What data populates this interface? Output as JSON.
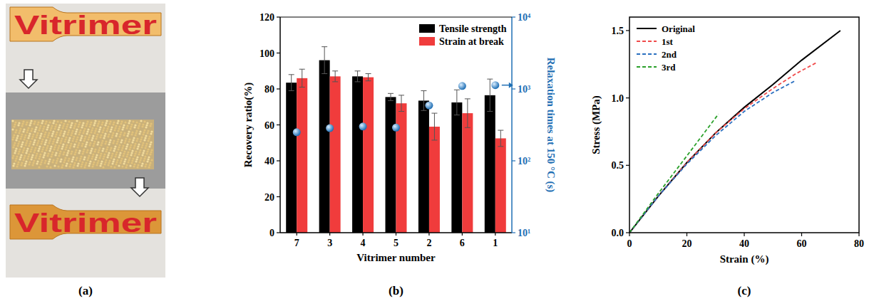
{
  "photo": {
    "caption": "(a)",
    "labels": [
      "Vitrimer",
      "Vitrimer"
    ]
  },
  "chart_data": [
    {
      "type": "bar",
      "caption": "(b)",
      "x_label": "Vitrimer number",
      "y_label": "Recovery ratio(%)",
      "y2_label": "Relaxation times at 150 °C (s)",
      "categories": [
        "7",
        "3",
        "4",
        "5",
        "2",
        "6",
        "1"
      ],
      "series": [
        {
          "name": "Tensile strength",
          "color": "#000000",
          "values": [
            83.5,
            96,
            87,
            75.5,
            73.5,
            72.5,
            76.5
          ],
          "errors": [
            4.5,
            7.5,
            3,
            2,
            5.5,
            7,
            9
          ]
        },
        {
          "name": "Strain at break",
          "color": "#f03c3c",
          "values": [
            86,
            87,
            86.5,
            72,
            59,
            66.5,
            52.5
          ],
          "errors": [
            5,
            3,
            2,
            4.5,
            7.5,
            8,
            4.5
          ]
        },
        {
          "type": "scatter",
          "axis": "y2",
          "color": "#1f6fb4",
          "marker": "sphere",
          "values": [
            250,
            285,
            300,
            290,
            590,
            1100,
            1130
          ]
        }
      ],
      "ylim": [
        0,
        120
      ],
      "yticks": [
        0,
        20,
        40,
        60,
        80,
        100,
        120
      ],
      "y2lim": [
        10,
        10000
      ],
      "y2ticks": [
        {
          "value": 10,
          "label": "10¹"
        },
        {
          "value": 100,
          "label": "10²"
        },
        {
          "value": 1000,
          "label": "10³"
        },
        {
          "value": 10000,
          "label": "10⁴"
        }
      ],
      "log": "y2",
      "legend": "top-right",
      "grid": false
    },
    {
      "type": "line",
      "caption": "(c)",
      "x_label": "Strain (%)",
      "y_label": "Stress (MPa)",
      "series": [
        {
          "name": "Original",
          "color": "#000000",
          "line_style": "solid",
          "x": [
            0,
            10,
            20,
            30,
            40,
            50,
            60,
            73.5
          ],
          "values": [
            0,
            0.27,
            0.52,
            0.74,
            0.93,
            1.1,
            1.28,
            1.5
          ]
        },
        {
          "name": "1st",
          "color": "#f04a4a",
          "line_style": "dashed",
          "x": [
            0,
            10,
            20,
            30,
            40,
            50,
            58,
            65
          ],
          "values": [
            0,
            0.27,
            0.52,
            0.74,
            0.92,
            1.07,
            1.18,
            1.26
          ]
        },
        {
          "name": "2nd",
          "color": "#2a6fc0",
          "line_style": "dashed",
          "x": [
            0,
            10,
            20,
            30,
            40,
            50,
            58
          ],
          "values": [
            0,
            0.27,
            0.51,
            0.72,
            0.9,
            1.04,
            1.13
          ]
        },
        {
          "name": "3rd",
          "color": "#2aa02a",
          "line_style": "dashed",
          "x": [
            0,
            10,
            20,
            31
          ],
          "values": [
            0,
            0.29,
            0.57,
            0.88
          ]
        }
      ],
      "xlim": [
        0,
        80
      ],
      "xticks": [
        0,
        20,
        40,
        60,
        80
      ],
      "ylim": [
        0,
        1.6
      ],
      "yticks": [
        {
          "value": 0,
          "label": "0.0"
        },
        {
          "value": 0.5,
          "label": "0.5"
        },
        {
          "value": 1,
          "label": "1.0"
        },
        1.5
      ],
      "legend": "top-left",
      "grid": false
    }
  ]
}
